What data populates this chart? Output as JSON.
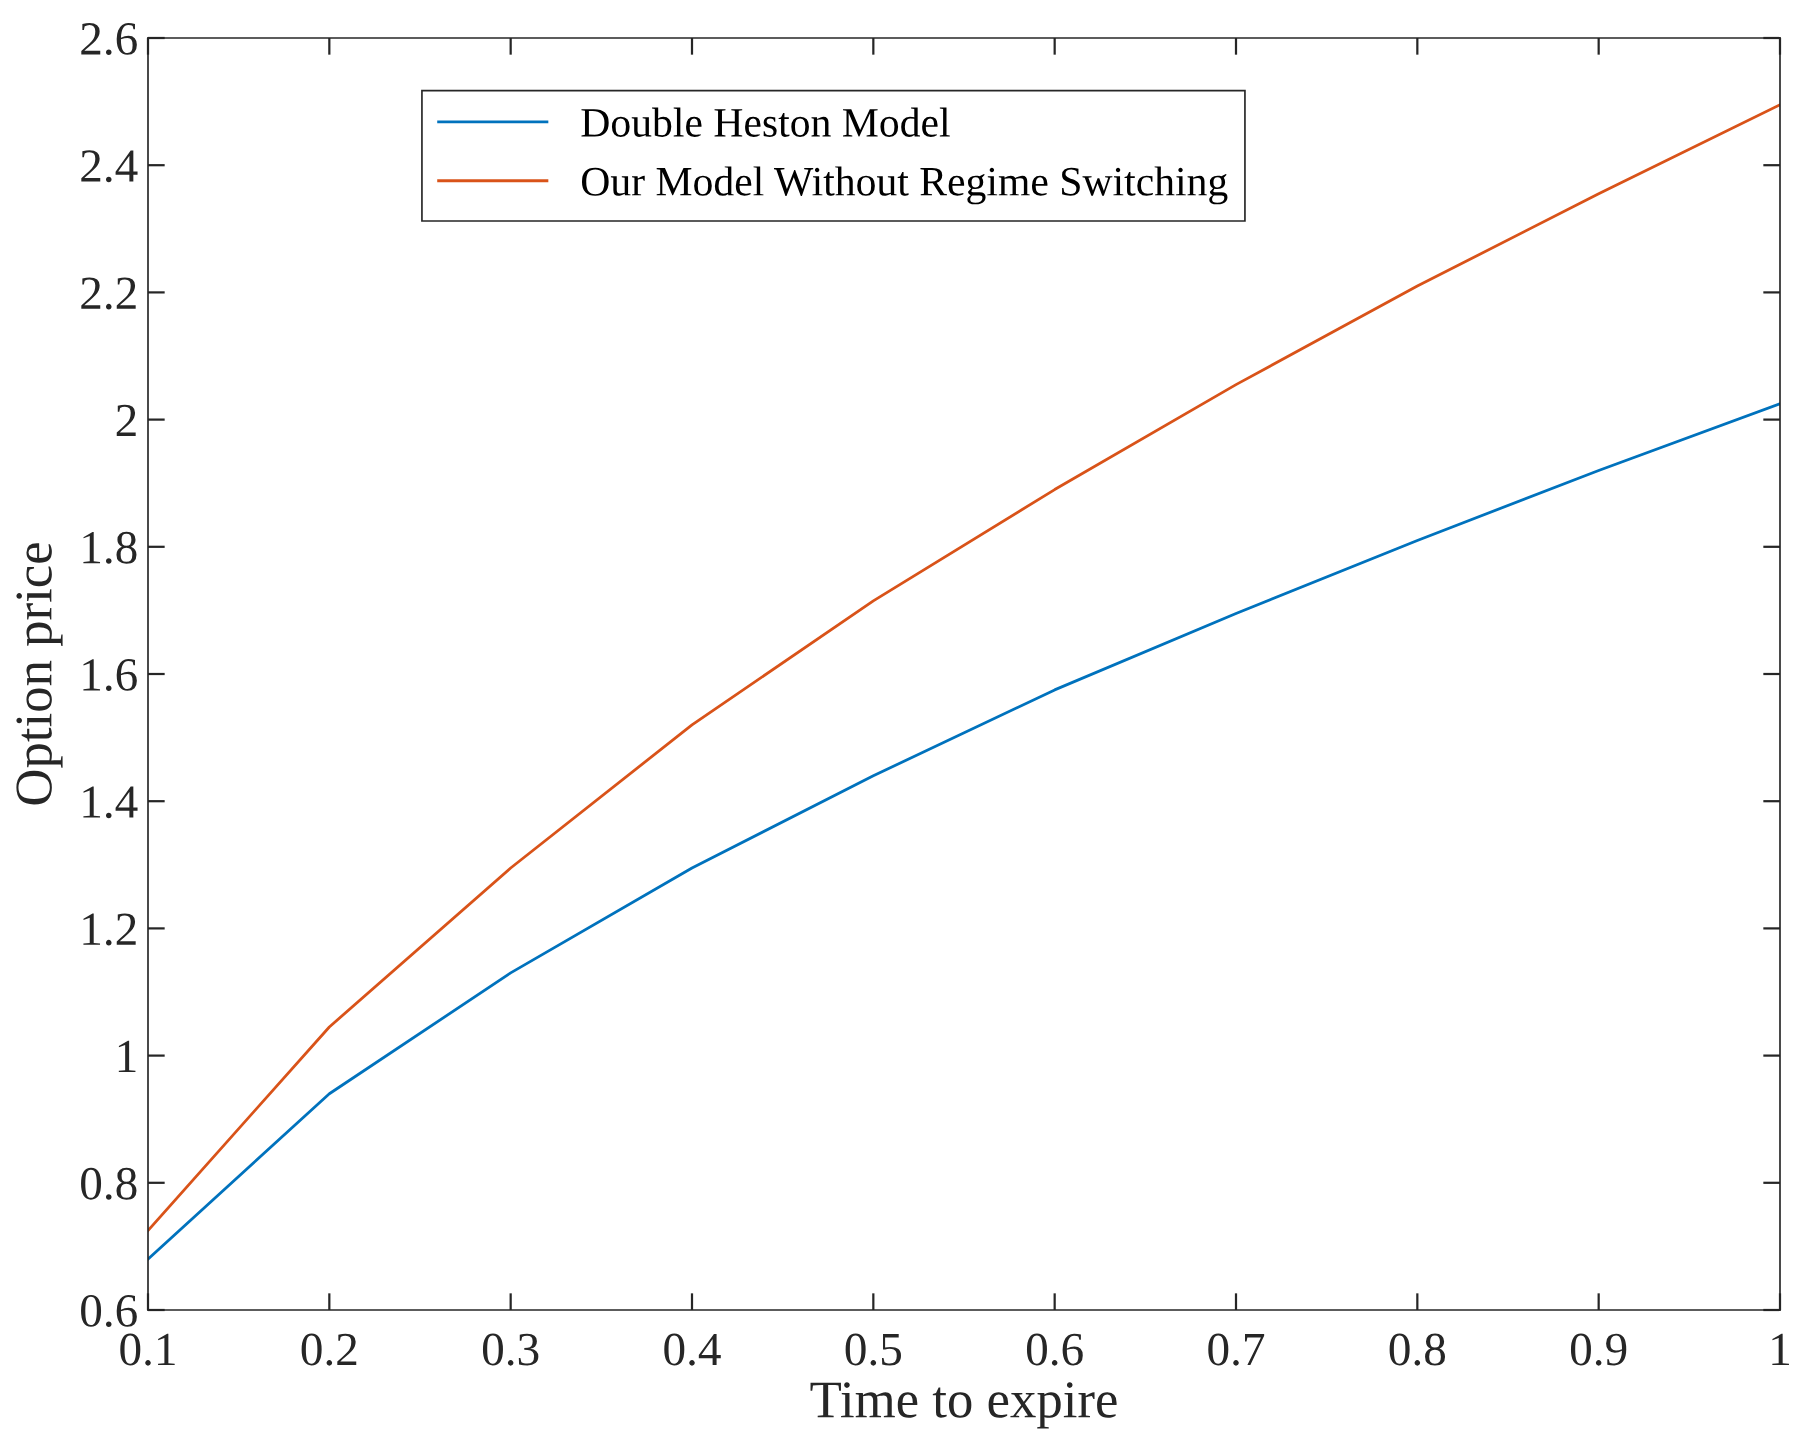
{
  "chart_data": {
    "type": "line",
    "xlabel": "Time to expire",
    "ylabel": "Option price",
    "x": [
      0.1,
      0.2,
      0.3,
      0.4,
      0.5,
      0.6,
      0.7,
      0.8,
      0.9,
      1
    ],
    "series": [
      {
        "name": "Double Heston Model",
        "color": "#0072bd",
        "values": [
          0.68,
          0.94,
          1.13,
          1.295,
          1.44,
          1.575,
          1.695,
          1.81,
          1.92,
          2.025
        ]
      },
      {
        "name": "Our Model Without Regime Switching",
        "color": "#d95319",
        "values": [
          0.725,
          1.045,
          1.295,
          1.52,
          1.715,
          1.89,
          2.055,
          2.21,
          2.355,
          2.495
        ]
      }
    ],
    "xlim": [
      0.1,
      1
    ],
    "xticks": [
      0.1,
      0.2,
      0.3,
      0.4,
      0.5,
      0.6,
      0.7,
      0.8,
      0.9,
      1
    ],
    "ylim": [
      0.6,
      2.6
    ],
    "yticks": [
      0.6,
      0.8,
      1,
      1.2,
      1.4,
      1.6,
      1.8,
      2,
      2.2,
      2.4,
      2.6
    ],
    "legend": "top",
    "grid": false,
    "marker": "none",
    "line_style": "solid"
  }
}
